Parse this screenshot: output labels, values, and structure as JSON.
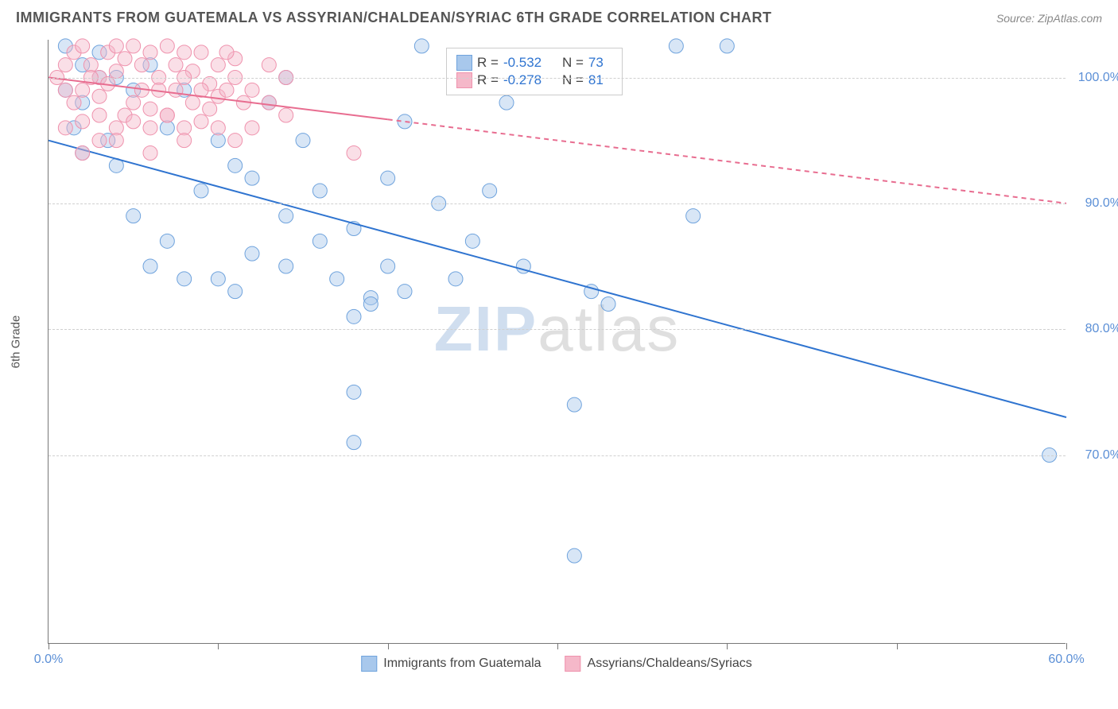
{
  "header": {
    "title": "IMMIGRANTS FROM GUATEMALA VS ASSYRIAN/CHALDEAN/SYRIAC 6TH GRADE CORRELATION CHART",
    "source": "Source: ZipAtlas.com"
  },
  "chart": {
    "type": "scatter",
    "ylabel": "6th Grade",
    "xlim": [
      0,
      60
    ],
    "ylim": [
      55,
      103
    ],
    "xtick_positions": [
      0,
      10,
      20,
      30,
      40,
      50,
      60
    ],
    "xtick_labels": {
      "0": "0.0%",
      "60": "60.0%"
    },
    "ytick_positions": [
      70,
      80,
      90,
      100
    ],
    "ytick_labels": [
      "70.0%",
      "80.0%",
      "90.0%",
      "100.0%"
    ],
    "background_color": "#ffffff",
    "grid_color": "#d0d0d0",
    "axis_color": "#777777",
    "tick_label_color": "#5b8fd6",
    "tick_fontsize": 16,
    "ylabel_fontsize": 15,
    "marker_radius": 9,
    "marker_opacity": 0.45,
    "line_width": 2,
    "watermark": {
      "text1": "ZIP",
      "text2": "atlas"
    },
    "series": [
      {
        "name": "Immigrants from Guatemala",
        "color_fill": "#a8c8ec",
        "color_stroke": "#6fa3dd",
        "line_color": "#2f74d0",
        "regression": {
          "x1": 0,
          "y1": 95,
          "x2": 60,
          "y2": 73,
          "dash_from_x": 60
        },
        "R": "-0.532",
        "N": "73",
        "points": [
          [
            1,
            102.5
          ],
          [
            2,
            101
          ],
          [
            3,
            100
          ],
          [
            1,
            99
          ],
          [
            2,
            98
          ],
          [
            3,
            102
          ],
          [
            4,
            100
          ],
          [
            5,
            99
          ],
          [
            1.5,
            96
          ],
          [
            3.5,
            95
          ],
          [
            2,
            94
          ],
          [
            4,
            93
          ],
          [
            6,
            101
          ],
          [
            8,
            99
          ],
          [
            7,
            96
          ],
          [
            10,
            95
          ],
          [
            11,
            93
          ],
          [
            9,
            91
          ],
          [
            5,
            89
          ],
          [
            7,
            87
          ],
          [
            6,
            85
          ],
          [
            8,
            84
          ],
          [
            12,
            92
          ],
          [
            13,
            98
          ],
          [
            14,
            100
          ],
          [
            15,
            95
          ],
          [
            14,
            89
          ],
          [
            16,
            87
          ],
          [
            12,
            86
          ],
          [
            10,
            84
          ],
          [
            11,
            83
          ],
          [
            14,
            85
          ],
          [
            16,
            91
          ],
          [
            18,
            88
          ],
          [
            17,
            84
          ],
          [
            19,
            82.5
          ],
          [
            20,
            92
          ],
          [
            21,
            96.5
          ],
          [
            22,
            102.5
          ],
          [
            20,
            85
          ],
          [
            21,
            83
          ],
          [
            19,
            82
          ],
          [
            18,
            81
          ],
          [
            18,
            75
          ],
          [
            18,
            71
          ],
          [
            23,
            90
          ],
          [
            25,
            87
          ],
          [
            24,
            84
          ],
          [
            27,
            98
          ],
          [
            26,
            91
          ],
          [
            28,
            85
          ],
          [
            31,
            74
          ],
          [
            31,
            62
          ],
          [
            32,
            83
          ],
          [
            33,
            82
          ],
          [
            37,
            102.5
          ],
          [
            38,
            89
          ],
          [
            40,
            102.5
          ],
          [
            59,
            70
          ]
        ]
      },
      {
        "name": "Assyrians/Chaldeans/Syriacs",
        "color_fill": "#f5b8c9",
        "color_stroke": "#ef92ad",
        "line_color": "#e86d90",
        "regression": {
          "x1": 0,
          "y1": 100,
          "x2": 60,
          "y2": 90,
          "dash_from_x": 20
        },
        "R": "-0.278",
        "N": "81",
        "points": [
          [
            0.5,
            100
          ],
          [
            1,
            101
          ],
          [
            1.5,
            102
          ],
          [
            2,
            102.5
          ],
          [
            2.5,
            101
          ],
          [
            3,
            100
          ],
          [
            3.5,
            102
          ],
          [
            4,
            102.5
          ],
          [
            4.5,
            101.5
          ],
          [
            5,
            102.5
          ],
          [
            5.5,
            101
          ],
          [
            6,
            102
          ],
          [
            6.5,
            100
          ],
          [
            7,
            102.5
          ],
          [
            7.5,
            101
          ],
          [
            8,
            102
          ],
          [
            8.5,
            100.5
          ],
          [
            9,
            102
          ],
          [
            9.5,
            99.5
          ],
          [
            10,
            101
          ],
          [
            1,
            99
          ],
          [
            1.5,
            98
          ],
          [
            2,
            99
          ],
          [
            2.5,
            100
          ],
          [
            3,
            98.5
          ],
          [
            3.5,
            99.5
          ],
          [
            4,
            100.5
          ],
          [
            4.5,
            97
          ],
          [
            5,
            98
          ],
          [
            5.5,
            99
          ],
          [
            6,
            97.5
          ],
          [
            6.5,
            99
          ],
          [
            7,
            97
          ],
          [
            7.5,
            99
          ],
          [
            8,
            100
          ],
          [
            8.5,
            98
          ],
          [
            9,
            99
          ],
          [
            9.5,
            97.5
          ],
          [
            10,
            98.5
          ],
          [
            1,
            96
          ],
          [
            2,
            96.5
          ],
          [
            3,
            97
          ],
          [
            4,
            96
          ],
          [
            5,
            96.5
          ],
          [
            6,
            96
          ],
          [
            7,
            97
          ],
          [
            8,
            96
          ],
          [
            9,
            96.5
          ],
          [
            11,
            100
          ],
          [
            11.5,
            98
          ],
          [
            12,
            99
          ],
          [
            12,
            96
          ],
          [
            13,
            101
          ],
          [
            14,
            97
          ],
          [
            11,
            101.5
          ],
          [
            10.5,
            102
          ],
          [
            10.5,
            99
          ],
          [
            2,
            94
          ],
          [
            3,
            95
          ],
          [
            4,
            95
          ],
          [
            6,
            94
          ],
          [
            8,
            95
          ],
          [
            10,
            96
          ],
          [
            11,
            95
          ],
          [
            18,
            94
          ],
          [
            14,
            100
          ],
          [
            13,
            98
          ]
        ]
      }
    ],
    "legend_box": {
      "rows": [
        {
          "swatch_fill": "#a8c8ec",
          "swatch_stroke": "#6fa3dd",
          "R_label": "R =",
          "R": "-0.532",
          "N_label": "N =",
          "N": "73"
        },
        {
          "swatch_fill": "#f5b8c9",
          "swatch_stroke": "#ef92ad",
          "R_label": "R =",
          "R": "-0.278",
          "N_label": "N =",
          "N": "81"
        }
      ]
    }
  }
}
